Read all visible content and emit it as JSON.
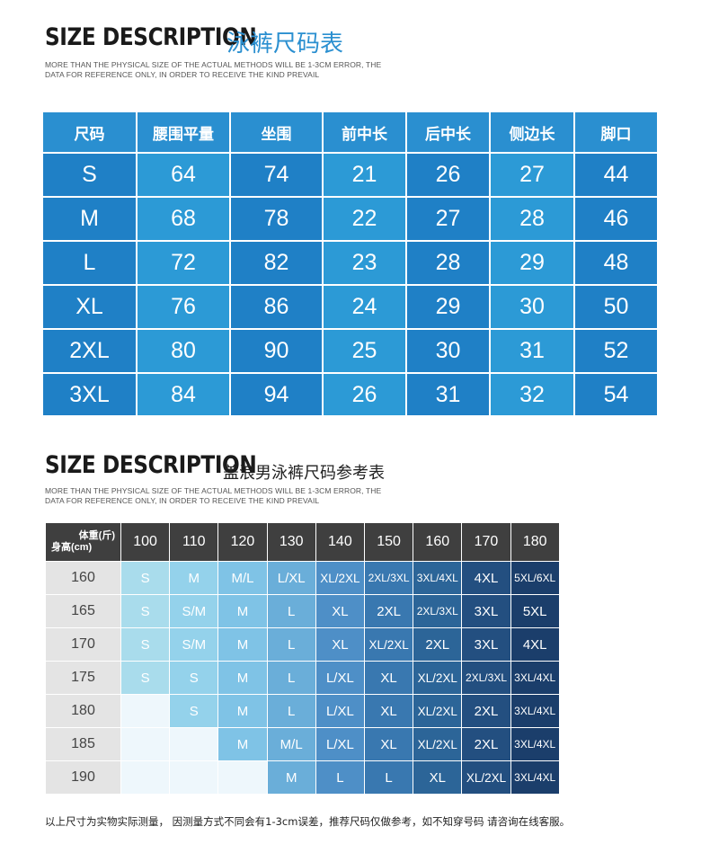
{
  "section1": {
    "title_en": "SIZE DESCRIPTION",
    "title_cn": "泳裤尺码表",
    "subtitle_line1": "MORE THAN THE PHYSICAL SIZE OF THE ACTUAL METHODS WILL BE 1-3CM ERROR, THE",
    "subtitle_line2": "DATA FOR REFERENCE ONLY, IN ORDER TO RECEIVE THE KIND PREVAIL",
    "headers": [
      "尺码",
      "腰围平量",
      "坐围",
      "前中长",
      "后中长",
      "侧边长",
      "脚口"
    ],
    "rows": [
      [
        "S",
        "64",
        "74",
        "21",
        "26",
        "27",
        "44"
      ],
      [
        "M",
        "68",
        "78",
        "22",
        "27",
        "28",
        "46"
      ],
      [
        "L",
        "72",
        "82",
        "23",
        "28",
        "29",
        "48"
      ],
      [
        "XL",
        "76",
        "86",
        "24",
        "29",
        "30",
        "50"
      ],
      [
        "2XL",
        "80",
        "90",
        "25",
        "30",
        "31",
        "52"
      ],
      [
        "3XL",
        "84",
        "94",
        "26",
        "31",
        "32",
        "54"
      ]
    ],
    "colors": {
      "header": "#2a8fd0",
      "row_dark": "#1f80c6",
      "row_light": "#2c9ad6"
    }
  },
  "section2": {
    "title_en": "SIZE DESCRIPTION",
    "title_cn": "盖浪男泳裤尺码参考表",
    "subtitle_line1": "MORE THAN THE PHYSICAL SIZE OF THE ACTUAL METHODS WILL BE 1-3CM ERROR, THE",
    "subtitle_line2": "DATA FOR REFERENCE ONLY, IN ORDER TO RECEIVE THE KIND PREVAIL",
    "corner_weight": "体重(斤)",
    "corner_height": "身高(cm)",
    "weights": [
      "100",
      "110",
      "120",
      "130",
      "140",
      "150",
      "160",
      "170",
      "180"
    ],
    "rows": [
      {
        "height": "160",
        "sizes": [
          "S",
          "M",
          "M/L",
          "L/XL",
          "XL/2XL",
          "2XL/3XL",
          "3XL/4XL",
          "4XL",
          "5XL/6XL"
        ]
      },
      {
        "height": "165",
        "sizes": [
          "S",
          "S/M",
          "M",
          "L",
          "XL",
          "2XL",
          "2XL/3XL",
          "3XL",
          "5XL"
        ]
      },
      {
        "height": "170",
        "sizes": [
          "S",
          "S/M",
          "M",
          "L",
          "XL",
          "XL/2XL",
          "2XL",
          "3XL",
          "4XL"
        ]
      },
      {
        "height": "175",
        "sizes": [
          "S",
          "S",
          "M",
          "L",
          "L/XL",
          "XL",
          "XL/2XL",
          "2XL/3XL",
          "3XL/4XL"
        ]
      },
      {
        "height": "180",
        "sizes": [
          "",
          "S",
          "M",
          "L",
          "L/XL",
          "XL",
          "XL/2XL",
          "2XL",
          "3XL/4XL"
        ]
      },
      {
        "height": "185",
        "sizes": [
          "",
          "",
          "M",
          "M/L",
          "L/XL",
          "XL",
          "XL/2XL",
          "2XL",
          "3XL/4XL"
        ]
      },
      {
        "height": "190",
        "sizes": [
          "",
          "",
          "",
          "M",
          "L",
          "L",
          "XL",
          "XL/2XL",
          "3XL/4XL"
        ]
      }
    ],
    "column_colors": [
      "#a9dcec",
      "#94d2eb",
      "#7fc3e6",
      "#6aaed9",
      "#4e8fc7",
      "#3978b0",
      "#2c6598",
      "#234f80",
      "#1b3e6b"
    ],
    "empty_color": "#eef7fc",
    "header_color": "#3f3f3f"
  },
  "footer": "以上尺寸为实物实际测量， 因测量方式不同会有1-3cm误差，推荐尺码仅做参考，如不知穿号码 请咨询在线客服。"
}
